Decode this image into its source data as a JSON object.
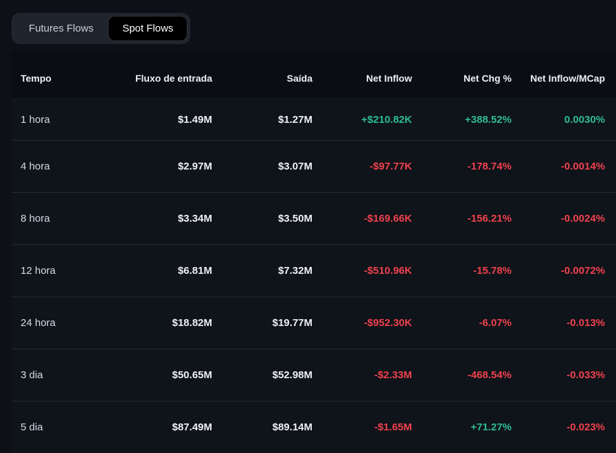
{
  "colors": {
    "positive": "#2ebd96",
    "negative": "#f0424d",
    "background": "#0d1016",
    "row_background": "#0f131a",
    "header_background": "#0a0d12",
    "tab_pill_background": "#1f242c",
    "active_tab_background": "#000000"
  },
  "tabs": {
    "futures_label": "Futures Flows",
    "spot_label": "Spot Flows",
    "active": "Spot Flows"
  },
  "table": {
    "columns": [
      "Tempo",
      "Fluxo de entrada",
      "Saída",
      "Net Inflow",
      "Net Chg %",
      "Net Inflow/MCap"
    ],
    "rows": [
      {
        "time": "1 hora",
        "inflow": "$1.49M",
        "outflow": "$1.27M",
        "net": "+$210.82K",
        "net_trend": "up",
        "chg": "+388.52%",
        "chg_trend": "up",
        "mcap": "0.0030%",
        "mcap_trend": "up"
      },
      {
        "time": "4 hora",
        "inflow": "$2.97M",
        "outflow": "$3.07M",
        "net": "-$97.77K",
        "net_trend": "down",
        "chg": "-178.74%",
        "chg_trend": "down",
        "mcap": "-0.0014%",
        "mcap_trend": "down"
      },
      {
        "time": "8 hora",
        "inflow": "$3.34M",
        "outflow": "$3.50M",
        "net": "-$169.66K",
        "net_trend": "down",
        "chg": "-156.21%",
        "chg_trend": "down",
        "mcap": "-0.0024%",
        "mcap_trend": "down"
      },
      {
        "time": "12 hora",
        "inflow": "$6.81M",
        "outflow": "$7.32M",
        "net": "-$510.96K",
        "net_trend": "down",
        "chg": "-15.78%",
        "chg_trend": "down",
        "mcap": "-0.0072%",
        "mcap_trend": "down"
      },
      {
        "time": "24 hora",
        "inflow": "$18.82M",
        "outflow": "$19.77M",
        "net": "-$952.30K",
        "net_trend": "down",
        "chg": "-6.07%",
        "chg_trend": "down",
        "mcap": "-0.013%",
        "mcap_trend": "down"
      },
      {
        "time": "3 dia",
        "inflow": "$50.65M",
        "outflow": "$52.98M",
        "net": "-$2.33M",
        "net_trend": "down",
        "chg": "-468.54%",
        "chg_trend": "down",
        "mcap": "-0.033%",
        "mcap_trend": "down"
      },
      {
        "time": "5 dia",
        "inflow": "$87.49M",
        "outflow": "$89.14M",
        "net": "-$1.65M",
        "net_trend": "down",
        "chg": "+71.27%",
        "chg_trend": "up",
        "mcap": "-0.023%",
        "mcap_trend": "down"
      }
    ]
  }
}
